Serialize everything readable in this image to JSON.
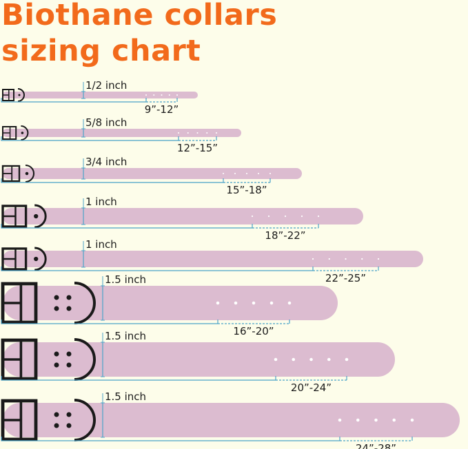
{
  "title": {
    "line1": "Biothane collars",
    "line2": "sizing chart"
  },
  "colors": {
    "title": "#f26a1b",
    "collar": "#dcbcd0",
    "measure_line": "#4aa3c8",
    "hardware": "#1a1a1a",
    "background": "#fdfdea"
  },
  "collars": [
    {
      "width": "1/2 inch",
      "range": "9”-12”"
    },
    {
      "width": "5/8 inch",
      "range": "12”-15”"
    },
    {
      "width": "3/4 inch",
      "range": "15”-18”"
    },
    {
      "width": "1 inch",
      "range": "18”-22”"
    },
    {
      "width": "1 inch",
      "range": "22”-25”"
    },
    {
      "width": "1.5 inch",
      "range": "16”-20”"
    },
    {
      "width": "1.5 inch",
      "range": "20”-24”"
    },
    {
      "width": "1.5 inch",
      "range": "24”-28”"
    }
  ]
}
